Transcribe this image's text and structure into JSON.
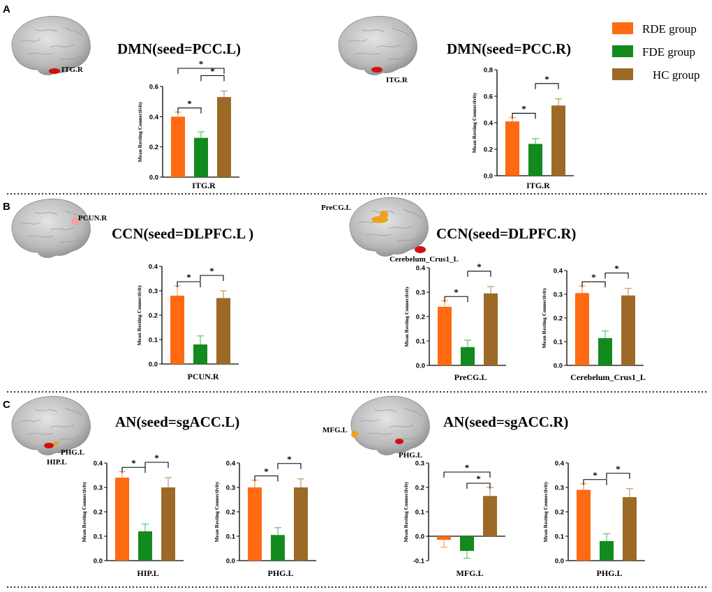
{
  "colors": {
    "rde": "#ff6a13",
    "fde": "#128a1e",
    "hc": "#9c6a26",
    "rde_err": "#ff9a60",
    "fde_err": "#5cc46a",
    "hc_err": "#c49a5e"
  },
  "legend": [
    {
      "label": "RDE group",
      "color": "#ff6a13"
    },
    {
      "label": "FDE group",
      "color": "#128a1e"
    },
    {
      "label": "HC group",
      "color": "#9c6a26"
    }
  ],
  "panels": [
    {
      "letter": "A",
      "titles": [
        "DMN(seed=PCC.L)",
        "DMN(seed=PCC.R)"
      ],
      "regions": [
        "ITG.R",
        "ITG.R"
      ]
    },
    {
      "letter": "B",
      "titles": [
        "CCN(seed=DLPFC.L )",
        "CCN(seed=DLPFC.R)"
      ],
      "regions": [
        "PCUN.R",
        "PreCG.L",
        "Cerebelum_Crus1_L"
      ]
    },
    {
      "letter": "C",
      "titles": [
        "AN(seed=sgACC.L)",
        "AN(seed=sgACC.R)"
      ],
      "regions": [
        "PHG.L",
        "HIP.L",
        "MFG.L",
        "PHG.L"
      ]
    }
  ],
  "chart_data": [
    {
      "type": "bar",
      "panel": "A",
      "seed": "PCC.L",
      "xlabel": "ITG.R",
      "ylabel": "Mean Resting Connectivity",
      "ylim": [
        0,
        0.6
      ],
      "ticks": [
        0,
        0.2,
        0.4,
        0.6
      ],
      "tick_labels": [
        "0.0",
        "0.2",
        "0.4",
        "0.6"
      ],
      "categories": [
        "RDE group",
        "FDE group",
        "HC group"
      ],
      "values": [
        0.4,
        0.26,
        0.53
      ],
      "errors": [
        0.03,
        0.04,
        0.04
      ],
      "significance": [
        {
          "pair": [
            0,
            1
          ],
          "label": "*"
        },
        {
          "pair": [
            1,
            2
          ],
          "label": "*"
        },
        {
          "pair": [
            0,
            2
          ],
          "label": "*"
        }
      ]
    },
    {
      "type": "bar",
      "panel": "A",
      "seed": "PCC.R",
      "xlabel": "ITG.R",
      "ylabel": "Mean Resting Connectivity",
      "ylim": [
        0,
        0.8
      ],
      "ticks": [
        0,
        0.2,
        0.4,
        0.6,
        0.8
      ],
      "tick_labels": [
        "0.0",
        "0.2",
        "0.4",
        "0.6",
        "0.8"
      ],
      "categories": [
        "RDE group",
        "FDE group",
        "HC group"
      ],
      "values": [
        0.41,
        0.24,
        0.53
      ],
      "errors": [
        0.03,
        0.04,
        0.05
      ],
      "significance": [
        {
          "pair": [
            0,
            1
          ],
          "label": "*"
        },
        {
          "pair": [
            1,
            2
          ],
          "label": "*"
        }
      ]
    },
    {
      "type": "bar",
      "panel": "B",
      "seed": "DLPFC.L",
      "xlabel": "PCUN.R",
      "ylabel": "Mean Resting Connectivity",
      "ylim": [
        0,
        0.4
      ],
      "ticks": [
        0,
        0.1,
        0.2,
        0.3,
        0.4
      ],
      "tick_labels": [
        "0.0",
        "0.1",
        "0.2",
        "0.3",
        "0.4"
      ],
      "categories": [
        "RDE group",
        "FDE group",
        "HC group"
      ],
      "values": [
        0.28,
        0.08,
        0.27
      ],
      "errors": [
        0.04,
        0.035,
        0.03
      ],
      "significance": [
        {
          "pair": [
            0,
            1
          ],
          "label": "*"
        },
        {
          "pair": [
            1,
            2
          ],
          "label": "*"
        }
      ]
    },
    {
      "type": "bar",
      "panel": "B",
      "seed": "DLPFC.R",
      "xlabel": "PreCG.L",
      "ylabel": "Mean Resting Connectivity",
      "ylim": [
        0,
        0.4
      ],
      "ticks": [
        0,
        0.1,
        0.2,
        0.3,
        0.4
      ],
      "tick_labels": [
        "0.0",
        "0.1",
        "0.2",
        "0.3",
        "0.4"
      ],
      "categories": [
        "RDE group",
        "FDE group",
        "HC group"
      ],
      "values": [
        0.24,
        0.075,
        0.295
      ],
      "errors": [
        0.025,
        0.028,
        0.028
      ],
      "significance": [
        {
          "pair": [
            0,
            1
          ],
          "label": "*"
        },
        {
          "pair": [
            1,
            2
          ],
          "label": "*"
        }
      ]
    },
    {
      "type": "bar",
      "panel": "B",
      "seed": "DLPFC.R",
      "xlabel": "Cerebelum_Crus1_L",
      "ylabel": "Mean Resting Connectivity",
      "ylim": [
        0,
        0.4
      ],
      "ticks": [
        0,
        0.1,
        0.2,
        0.3,
        0.4
      ],
      "tick_labels": [
        "0.0",
        "0.1",
        "0.2",
        "0.3",
        "0.4"
      ],
      "categories": [
        "RDE group",
        "FDE group",
        "HC group"
      ],
      "values": [
        0.305,
        0.115,
        0.295
      ],
      "errors": [
        0.03,
        0.03,
        0.03
      ],
      "significance": [
        {
          "pair": [
            0,
            1
          ],
          "label": "*"
        },
        {
          "pair": [
            1,
            2
          ],
          "label": "*"
        }
      ]
    },
    {
      "type": "bar",
      "panel": "C",
      "seed": "sgACC.L",
      "xlabel": "HIP.L",
      "ylabel": "Mean Resting Connectivity",
      "ylim": [
        0,
        0.4
      ],
      "ticks": [
        0,
        0.1,
        0.2,
        0.3,
        0.4
      ],
      "tick_labels": [
        "0.0",
        "0.1",
        "0.2",
        "0.3",
        "0.4"
      ],
      "categories": [
        "RDE group",
        "FDE group",
        "HC group"
      ],
      "values": [
        0.34,
        0.12,
        0.3
      ],
      "errors": [
        0.025,
        0.03,
        0.04
      ],
      "significance": [
        {
          "pair": [
            0,
            1
          ],
          "label": "*"
        },
        {
          "pair": [
            1,
            2
          ],
          "label": "*"
        }
      ]
    },
    {
      "type": "bar",
      "panel": "C",
      "seed": "sgACC.L",
      "xlabel": "PHG.L",
      "ylabel": "Mean Resting Connectivity",
      "ylim": [
        0,
        0.4
      ],
      "ticks": [
        0,
        0.1,
        0.2,
        0.3,
        0.4
      ],
      "tick_labels": [
        "0.0",
        "0.1",
        "0.2",
        "0.3",
        "0.4"
      ],
      "categories": [
        "RDE group",
        "FDE group",
        "HC group"
      ],
      "values": [
        0.3,
        0.105,
        0.3
      ],
      "errors": [
        0.03,
        0.03,
        0.035
      ],
      "significance": [
        {
          "pair": [
            0,
            1
          ],
          "label": "*"
        },
        {
          "pair": [
            1,
            2
          ],
          "label": "*"
        }
      ]
    },
    {
      "type": "bar",
      "panel": "C",
      "seed": "sgACC.R",
      "xlabel": "MFG.L",
      "ylabel": "Mean Resting Connectivity",
      "ylim": [
        -0.1,
        0.3
      ],
      "ticks": [
        -0.1,
        0,
        0.1,
        0.2,
        0.3
      ],
      "tick_labels": [
        "-0.1",
        "0.0",
        "0.1",
        "0.2",
        "0.3"
      ],
      "categories": [
        "RDE group",
        "FDE group",
        "HC group"
      ],
      "values": [
        -0.015,
        -0.06,
        0.165
      ],
      "errors": [
        0.03,
        0.03,
        0.035
      ],
      "significance": [
        {
          "pair": [
            1,
            2
          ],
          "label": "*"
        },
        {
          "pair": [
            0,
            2
          ],
          "label": "*"
        }
      ]
    },
    {
      "type": "bar",
      "panel": "C",
      "seed": "sgACC.R",
      "xlabel": "PHG.L",
      "ylabel": "Mean Resting Connectivity",
      "ylim": [
        0,
        0.4
      ],
      "ticks": [
        0,
        0.1,
        0.2,
        0.3,
        0.4
      ],
      "tick_labels": [
        "0.0",
        "0.1",
        "0.2",
        "0.3",
        "0.4"
      ],
      "categories": [
        "RDE group",
        "FDE group",
        "HC group"
      ],
      "values": [
        0.29,
        0.08,
        0.26
      ],
      "errors": [
        0.025,
        0.03,
        0.035
      ],
      "significance": [
        {
          "pair": [
            0,
            1
          ],
          "label": "*"
        },
        {
          "pair": [
            1,
            2
          ],
          "label": "*"
        }
      ]
    }
  ]
}
